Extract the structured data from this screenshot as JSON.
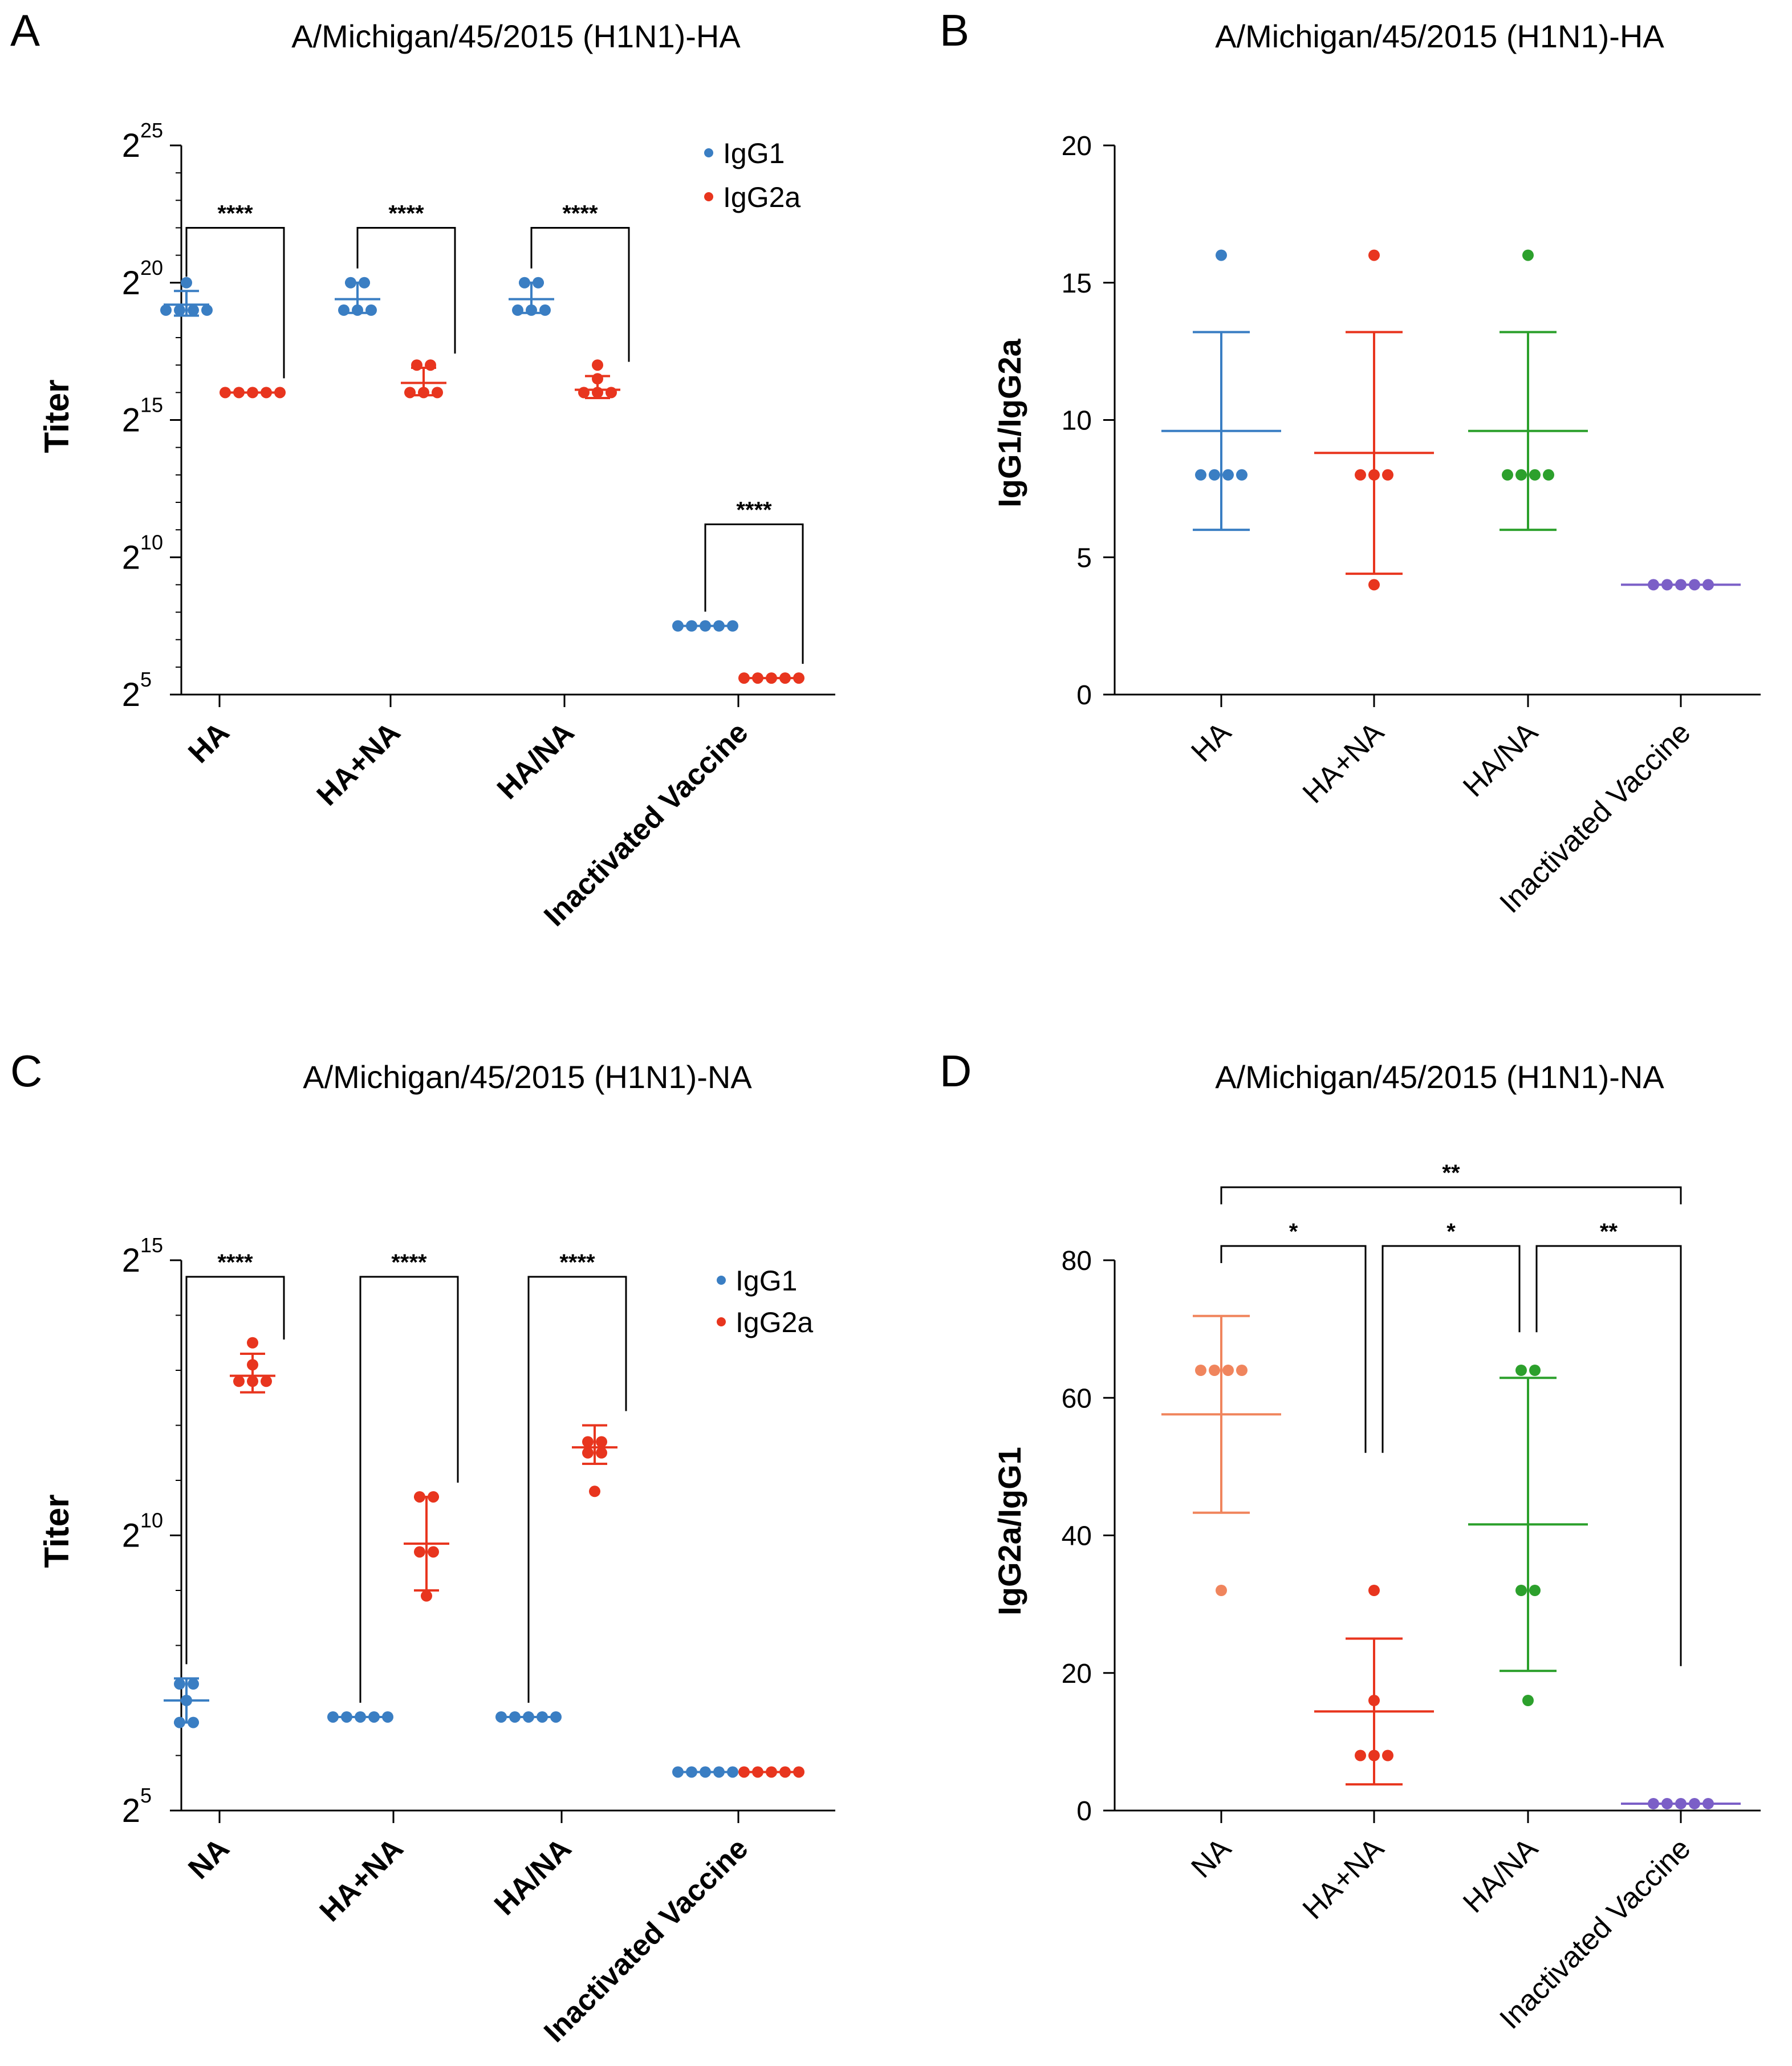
{
  "colors": {
    "igg1": "#3a7ec3",
    "igg2a": "#e8351e",
    "blue": "#3a7ec3",
    "red": "#e8351e",
    "green": "#2ca02c",
    "purple": "#7b5fc7",
    "salmon": "#f0855d",
    "axis": "#000000"
  },
  "chart_data": [
    {
      "panel": "A",
      "type": "scatter",
      "title": "A/Michigan/45/2015 (H1N1)-HA",
      "ylabel": "Titer",
      "xlabel": "",
      "yscale": "log2",
      "ylim_exp": [
        5,
        25
      ],
      "yticks": [
        {
          "base": "2",
          "exp": "5",
          "e": 5
        },
        {
          "base": "2",
          "exp": "10",
          "e": 10
        },
        {
          "base": "2",
          "exp": "15",
          "e": 15
        },
        {
          "base": "2",
          "exp": "20",
          "e": 20
        },
        {
          "base": "2",
          "exp": "25",
          "e": 25
        }
      ],
      "categories": [
        "HA",
        "HA+NA",
        "HA/NA",
        "Inactivated Vaccine"
      ],
      "legend": [
        "IgG1",
        "IgG2a"
      ],
      "series": [
        {
          "name": "IgG1",
          "color": "#3a7ec3",
          "groups": [
            {
              "points": [
                19,
                19,
                19,
                19,
                20
              ],
              "mean": 19.2,
              "sd": [
                18.8,
                19.7
              ]
            },
            {
              "points": [
                19,
                19,
                19,
                20,
                20
              ],
              "mean": 19.4,
              "sd": [
                18.9,
                20.0
              ]
            },
            {
              "points": [
                19,
                19,
                19,
                20,
                20
              ],
              "mean": 19.4,
              "sd": [
                18.9,
                20.0
              ]
            },
            {
              "points": [
                7.5,
                7.5,
                7.5,
                7.5,
                7.5
              ],
              "mean": 7.5,
              "sd": [
                7.5,
                7.5
              ]
            }
          ]
        },
        {
          "name": "IgG2a",
          "color": "#e8351e",
          "groups": [
            {
              "points": [
                16,
                16,
                16,
                16,
                16
              ],
              "mean": 16,
              "sd": [
                16,
                16
              ]
            },
            {
              "points": [
                16,
                16,
                16,
                17,
                17
              ],
              "mean": 16.35,
              "sd": [
                15.9,
                16.9
              ]
            },
            {
              "points": [
                16,
                16,
                16,
                16.5,
                17
              ],
              "mean": 16.1,
              "sd": [
                15.8,
                16.6
              ]
            },
            {
              "points": [
                5.6,
                5.6,
                5.6,
                5.6,
                5.6
              ],
              "mean": 5.6,
              "sd": [
                5.6,
                5.6
              ]
            }
          ]
        }
      ],
      "significance": [
        {
          "label": "****",
          "group": 0,
          "y_exp": 22
        },
        {
          "label": "****",
          "group": 1,
          "y_exp": 22
        },
        {
          "label": "****",
          "group": 2,
          "y_exp": 22
        },
        {
          "label": "****",
          "group": 3,
          "y_exp": 11.2
        }
      ]
    },
    {
      "panel": "B",
      "type": "scatter",
      "title": "A/Michigan/45/2015 (H1N1)-HA",
      "ylabel": "IgG1/IgG2a",
      "xlabel": "",
      "ylim": [
        0,
        20
      ],
      "yticks": [
        0,
        5,
        10,
        15,
        20
      ],
      "categories": [
        "HA",
        "HA+NA",
        "HA/NA",
        "Inactivated Vaccine"
      ],
      "groups": [
        {
          "color": "#3a7ec3",
          "points": [
            8,
            8,
            8,
            8,
            16
          ],
          "mean": 9.6,
          "sd": [
            6.0,
            13.2
          ]
        },
        {
          "color": "#e8351e",
          "points": [
            4,
            8,
            8,
            8,
            16
          ],
          "mean": 8.8,
          "sd": [
            4.4,
            13.2
          ]
        },
        {
          "color": "#2ca02c",
          "points": [
            8,
            8,
            8,
            8,
            16
          ],
          "mean": 9.6,
          "sd": [
            6.0,
            13.2
          ]
        },
        {
          "color": "#7b5fc7",
          "points": [
            4,
            4,
            4,
            4,
            4
          ],
          "mean": 4,
          "sd": [
            4,
            4
          ]
        }
      ]
    },
    {
      "panel": "C",
      "type": "scatter",
      "title": "A/Michigan/45/2015 (H1N1)-NA",
      "ylabel": "Titer",
      "xlabel": "",
      "yscale": "log2",
      "ylim_exp": [
        5,
        15
      ],
      "yticks": [
        {
          "base": "2",
          "exp": "5",
          "e": 5
        },
        {
          "base": "2",
          "exp": "10",
          "e": 10
        },
        {
          "base": "2",
          "exp": "15",
          "e": 15
        }
      ],
      "categories": [
        "NA",
        "HA+NA",
        "HA/NA",
        "Inactivated Vaccine"
      ],
      "legend": [
        "IgG1",
        "IgG2a"
      ],
      "series": [
        {
          "name": "IgG1",
          "color": "#3a7ec3",
          "groups": [
            {
              "points": [
                6.6,
                6.6,
                7,
                7.3,
                7.3
              ],
              "mean": 7.0,
              "sd": [
                6.6,
                7.4
              ]
            },
            {
              "points": [
                6.7,
                6.7,
                6.7,
                6.7,
                6.7
              ],
              "mean": 6.7,
              "sd": [
                6.7,
                6.7
              ]
            },
            {
              "points": [
                6.7,
                6.7,
                6.7,
                6.7,
                6.7
              ],
              "mean": 6.7,
              "sd": [
                6.7,
                6.7
              ]
            },
            {
              "points": [
                5.7,
                5.7,
                5.7,
                5.7,
                5.7
              ],
              "mean": 5.7,
              "sd": [
                5.7,
                5.7
              ]
            }
          ]
        },
        {
          "name": "IgG2a",
          "color": "#e8351e",
          "groups": [
            {
              "points": [
                12.8,
                12.8,
                12.8,
                13.1,
                13.5
              ],
              "mean": 12.9,
              "sd": [
                12.6,
                13.3
              ]
            },
            {
              "points": [
                8.9,
                9.7,
                9.7,
                10.7,
                10.7
              ],
              "mean": 9.85,
              "sd": [
                9.0,
                10.7
              ]
            },
            {
              "points": [
                10.8,
                11.5,
                11.5,
                11.7,
                11.7
              ],
              "mean": 11.6,
              "sd": [
                11.3,
                12.0
              ]
            },
            {
              "points": [
                5.7,
                5.7,
                5.7,
                5.7,
                5.7
              ],
              "mean": 5.7,
              "sd": [
                5.7,
                5.7
              ]
            }
          ]
        }
      ],
      "significance": [
        {
          "label": "****",
          "group": 0,
          "y_exp": 14.7
        },
        {
          "label": "****",
          "group": 1,
          "y_exp": 14.7
        },
        {
          "label": "****",
          "group": 2,
          "y_exp": 14.7
        }
      ]
    },
    {
      "panel": "D",
      "type": "scatter",
      "title": "A/Michigan/45/2015 (H1N1)-NA",
      "ylabel": "IgG2a/IgG1",
      "xlabel": "",
      "ylim": [
        0,
        80
      ],
      "yticks": [
        0,
        20,
        40,
        60,
        80
      ],
      "categories": [
        "NA",
        "HA+NA",
        "HA/NA",
        "Inactivated Vaccine"
      ],
      "groups": [
        {
          "color": "#f0855d",
          "points": [
            32,
            64,
            64,
            64,
            64
          ],
          "mean": 57.6,
          "sd": [
            43.3,
            71.9
          ]
        },
        {
          "color": "#e8351e",
          "points": [
            8,
            8,
            8,
            16,
            32
          ],
          "mean": 14.4,
          "sd": [
            3.8,
            25.0
          ]
        },
        {
          "color": "#2ca02c",
          "points": [
            16,
            32,
            32,
            64,
            64
          ],
          "mean": 41.6,
          "sd": [
            20.3,
            62.9
          ]
        },
        {
          "color": "#7b5fc7",
          "points": [
            1,
            1,
            1,
            1,
            1
          ],
          "mean": 1,
          "sd": [
            1,
            1
          ]
        }
      ],
      "significance": [
        {
          "label": "**",
          "from": 0,
          "to": 3,
          "level": 2
        },
        {
          "label": "*",
          "from": 0,
          "to": 1,
          "level": 1
        },
        {
          "label": "*",
          "from": 1,
          "to": 2,
          "level": 1
        },
        {
          "label": "**",
          "from": 2,
          "to": 3,
          "level": 1
        }
      ]
    }
  ]
}
